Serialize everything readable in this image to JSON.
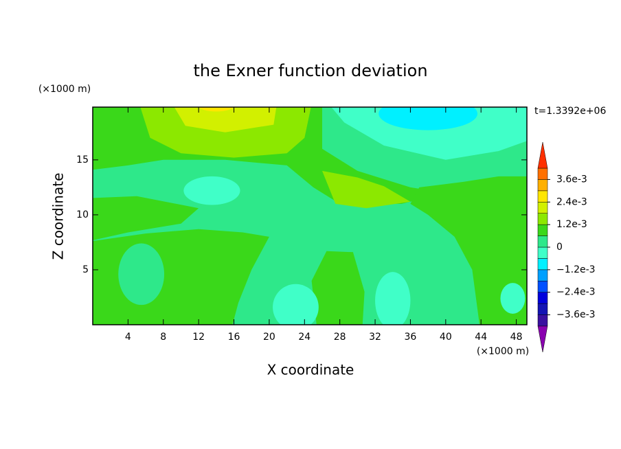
{
  "chart_data": {
    "type": "contour",
    "title": "the Exner function deviation",
    "xlabel": "X coordinate",
    "ylabel": "Z coordinate",
    "x_unit": "(×1000 m)",
    "y_unit": "(×1000 m)",
    "annotation": "t=1.3392e+06",
    "xlim": [
      0,
      49.2
    ],
    "ylim": [
      0,
      19.8
    ],
    "xticks": [
      4,
      8,
      12,
      16,
      20,
      24,
      28,
      32,
      36,
      40,
      44,
      48
    ],
    "yticks": [
      5,
      10,
      15
    ],
    "levels": [
      -0.0042,
      -0.0036,
      -0.003,
      -0.0024,
      -0.0018,
      -0.0012,
      -0.0006,
      0,
      0.0006,
      0.0012,
      0.0018,
      0.0024,
      0.003,
      0.0036,
      0.0042
    ],
    "colors": [
      "#8a00b0",
      "#3a10a0",
      "#1414b4",
      "#0000dc",
      "#0050ff",
      "#00a0ff",
      "#00f0ff",
      "#40ffc8",
      "#2ee88a",
      "#3ad81a",
      "#8ce800",
      "#d2f000",
      "#ffe600",
      "#ffb000",
      "#ff7000",
      "#ff3000",
      "#ffa8a8"
    ],
    "colorbar_ticks": [
      {
        "value": 0.0036,
        "label": "3.6e-3"
      },
      {
        "value": 0.0024,
        "label": "2.4e-3"
      },
      {
        "value": 0.0012,
        "label": "1.2e-3"
      },
      0,
      {
        "value": -0.0012,
        "label": "−1.2e-3"
      },
      {
        "value": -0.0024,
        "label": "−2.4e-3"
      },
      {
        "value": -0.0036,
        "label": "−3.6e-3"
      }
    ]
  }
}
